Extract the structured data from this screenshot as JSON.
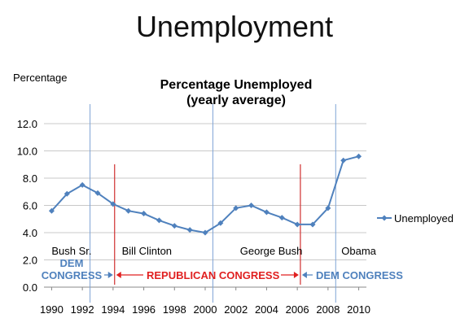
{
  "slide_title": "Unemployment",
  "chart_data": {
    "type": "line",
    "title_line1": "Percentage Unemployed",
    "title_line2": "(yearly average)",
    "ylabel": "Percentage",
    "ylim": [
      0,
      12
    ],
    "yticks": [
      "0.0",
      "2.0",
      "4.0",
      "6.0",
      "8.0",
      "10.0",
      "12.0"
    ],
    "xlim": [
      1989.5,
      2010.5
    ],
    "xticks": [
      "1990",
      "1992",
      "1994",
      "1996",
      "1998",
      "2000",
      "2002",
      "2004",
      "2006",
      "2008",
      "2010"
    ],
    "grid": true,
    "legend_position": "right",
    "series": [
      {
        "name": "Unemployed",
        "color": "#4F81BD",
        "x": [
          1990,
          1991,
          1992,
          1993,
          1994,
          1995,
          1996,
          1997,
          1998,
          1999,
          2000,
          2001,
          2002,
          2003,
          2004,
          2005,
          2006,
          2007,
          2008,
          2009,
          2010
        ],
        "values": [
          5.6,
          6.85,
          7.5,
          6.9,
          6.1,
          5.6,
          5.4,
          4.9,
          4.5,
          4.2,
          4.0,
          4.7,
          5.8,
          6.0,
          5.5,
          5.1,
          4.6,
          4.6,
          5.8,
          9.3,
          9.6
        ]
      }
    ],
    "president_lines": [
      1992.5,
      2000.5,
      2008.5
    ],
    "congress_lines": [
      1994.1,
      2006.2
    ],
    "annotations": {
      "presidents": [
        {
          "label": "Bush Sr.",
          "x": 1991.3
        },
        {
          "label": "Bill Clinton",
          "x": 1996.2
        },
        {
          "label": "George Bush",
          "x": 2004.3
        },
        {
          "label": "Obama",
          "x": 2010.0
        }
      ],
      "dem_left_line1": "DEM",
      "dem_left_line2": "CONGRESS",
      "republican": "REPUBLICAN CONGRESS",
      "dem_right": "DEM CONGRESS"
    }
  }
}
